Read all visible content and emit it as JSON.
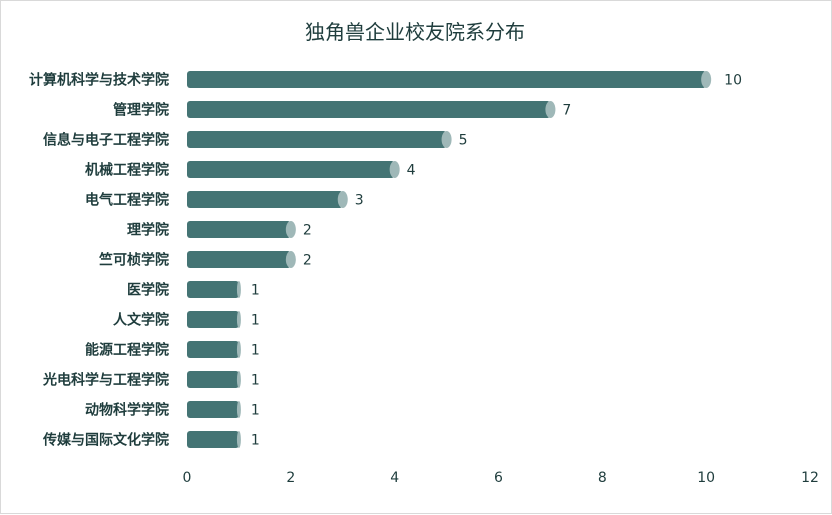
{
  "chart_data": {
    "type": "bar",
    "orientation": "horizontal",
    "title": "独角兽企业校友院系分布",
    "categories": [
      "计算机科学与技术学院",
      "管理学院",
      "信息与电子工程学院",
      "机械工程学院",
      "电气工程学院",
      "理学院",
      "竺可桢学院",
      "医学院",
      "人文学院",
      "能源工程学院",
      "光电科学与工程学院",
      "动物科学学院",
      "传媒与国际文化学院"
    ],
    "values": [
      10,
      7,
      5,
      4,
      3,
      2,
      2,
      1,
      1,
      1,
      1,
      1,
      1
    ],
    "xlim": [
      0,
      12
    ],
    "xticks": [
      0,
      2,
      4,
      6,
      8,
      10,
      12
    ],
    "xlabel": "",
    "ylabel": "",
    "grid": false,
    "legend": "none",
    "bar_color": "#447474",
    "bar_cap_color": "#9fb8b8",
    "text_color": "#1f3d3d"
  }
}
